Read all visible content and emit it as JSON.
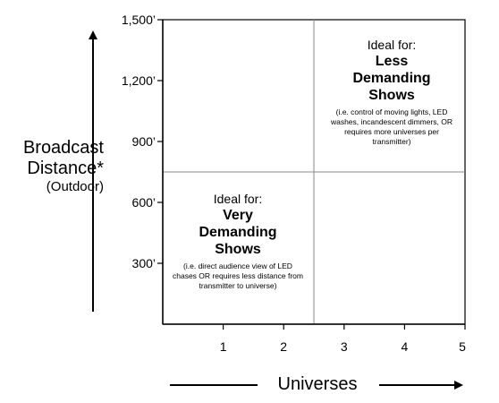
{
  "y_axis": {
    "title_line1": "Broadcast",
    "title_line2": "Distance*",
    "title_line3": "(Outdoor)",
    "ticks": [
      {
        "label": "300’",
        "value": 300
      },
      {
        "label": "600’",
        "value": 600
      },
      {
        "label": "900’",
        "value": 900
      },
      {
        "label": "1,200’",
        "value": 1200
      },
      {
        "label": "1,500’",
        "value": 1500
      }
    ],
    "range": [
      0,
      1500
    ],
    "divider_value": 750
  },
  "x_axis": {
    "title": "Universes",
    "ticks": [
      {
        "label": "1",
        "value": 1
      },
      {
        "label": "2",
        "value": 2
      },
      {
        "label": "3",
        "value": 3
      },
      {
        "label": "4",
        "value": 4
      },
      {
        "label": "5",
        "value": 5
      }
    ],
    "range": [
      0,
      5
    ],
    "divider_value": 2.5
  },
  "quadrants": {
    "top_right": {
      "ideal": "Ideal for:",
      "head1": "Less",
      "head2": "Demanding",
      "head3": "Shows",
      "note": "(i.e. control of moving lights, LED washes, incandescent dimmers, OR requires more universes per transmitter)"
    },
    "bottom_left": {
      "ideal": "Ideal for:",
      "head1": "Very",
      "head2": "Demanding",
      "head3": "Shows",
      "note": "(i.e. direct audience view of LED chases OR requires less distance from transmitter to universe)"
    }
  },
  "colors": {
    "frame": "#000000",
    "divider": "#888888",
    "text": "#000000"
  }
}
